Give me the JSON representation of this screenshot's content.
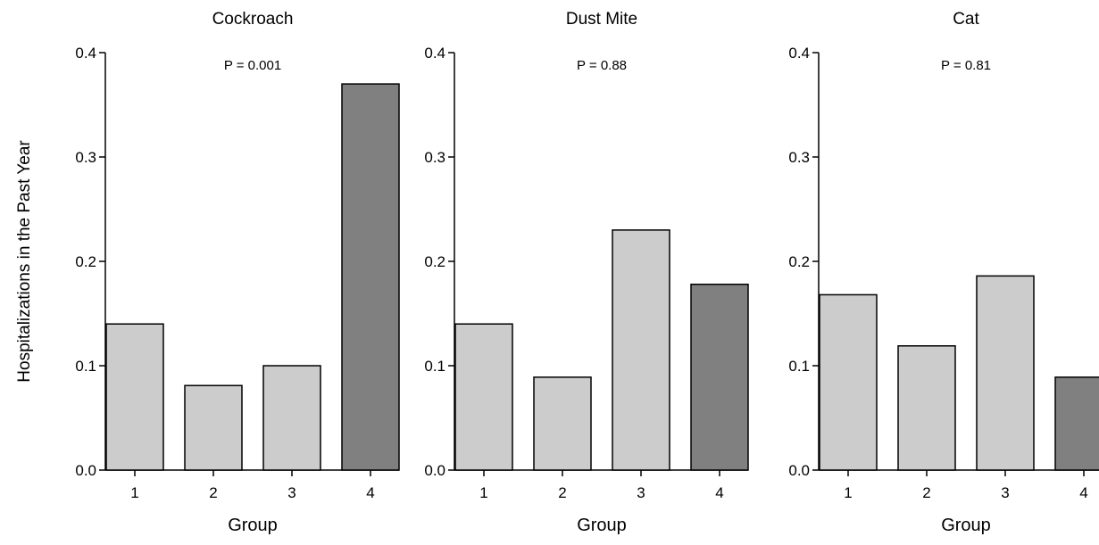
{
  "ylabel": "Hospitalizations in the Past Year",
  "chart_data": [
    {
      "type": "bar",
      "title": "Cockroach",
      "annotation": "P = 0.001",
      "xlabel": "Group",
      "categories": [
        "1",
        "2",
        "3",
        "4"
      ],
      "values": [
        0.14,
        0.081,
        0.1,
        0.37
      ],
      "bar_colors": [
        "#cccccc",
        "#cccccc",
        "#cccccc",
        "#808080"
      ],
      "ylim": [
        0,
        0.4
      ],
      "yticks": [
        "0.0",
        "0.1",
        "0.2",
        "0.3",
        "0.4"
      ],
      "grid": false
    },
    {
      "type": "bar",
      "title": "Dust Mite",
      "annotation": "P = 0.88",
      "xlabel": "Group",
      "categories": [
        "1",
        "2",
        "3",
        "4"
      ],
      "values": [
        0.14,
        0.089,
        0.23,
        0.178
      ],
      "bar_colors": [
        "#cccccc",
        "#cccccc",
        "#cccccc",
        "#808080"
      ],
      "ylim": [
        0,
        0.4
      ],
      "yticks": [
        "0.0",
        "0.1",
        "0.2",
        "0.3",
        "0.4"
      ],
      "grid": false
    },
    {
      "type": "bar",
      "title": "Cat",
      "annotation": "P = 0.81",
      "xlabel": "Group",
      "categories": [
        "1",
        "2",
        "3",
        "4"
      ],
      "values": [
        0.168,
        0.119,
        0.186,
        0.089
      ],
      "bar_colors": [
        "#cccccc",
        "#cccccc",
        "#cccccc",
        "#808080"
      ],
      "ylim": [
        0,
        0.4
      ],
      "yticks": [
        "0.0",
        "0.1",
        "0.2",
        "0.3",
        "0.4"
      ],
      "grid": false
    }
  ]
}
